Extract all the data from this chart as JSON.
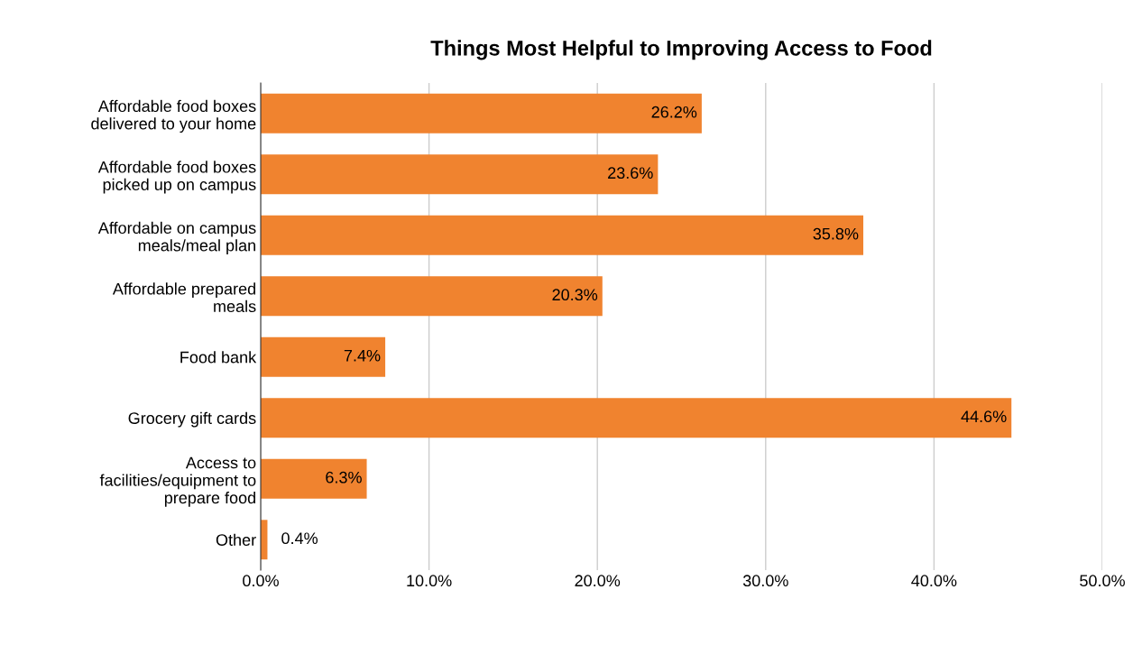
{
  "chart_data": {
    "type": "bar",
    "orientation": "horizontal",
    "title": "Things Most Helpful to Improving Access to Food",
    "categories": [
      "Affordable food boxes\ndelivered to your home",
      "Affordable food boxes\npicked up on campus",
      "Affordable on campus\nmeals/meal plan",
      "Affordable prepared\nmeals",
      "Food bank",
      "Grocery gift cards",
      "Access to\nfacilities/equipment to\nprepare food",
      "Other"
    ],
    "values": [
      26.2,
      23.6,
      35.8,
      20.3,
      7.4,
      44.6,
      6.3,
      0.4
    ],
    "value_labels": [
      "26.2%",
      "23.6%",
      "35.8%",
      "20.3%",
      "7.4%",
      "44.6%",
      "6.3%",
      "0.4%"
    ],
    "color": "#f0832f",
    "xlim": [
      0,
      50
    ],
    "xticks": [
      {
        "value": 0,
        "label": "0.0%"
      },
      {
        "value": 10,
        "label": "10.0%"
      },
      {
        "value": 20,
        "label": "20.0%"
      },
      {
        "value": 30,
        "label": "30.0%"
      },
      {
        "value": 40,
        "label": "40.0%"
      },
      {
        "value": 50,
        "label": "50.0%"
      }
    ],
    "grid": "x"
  }
}
